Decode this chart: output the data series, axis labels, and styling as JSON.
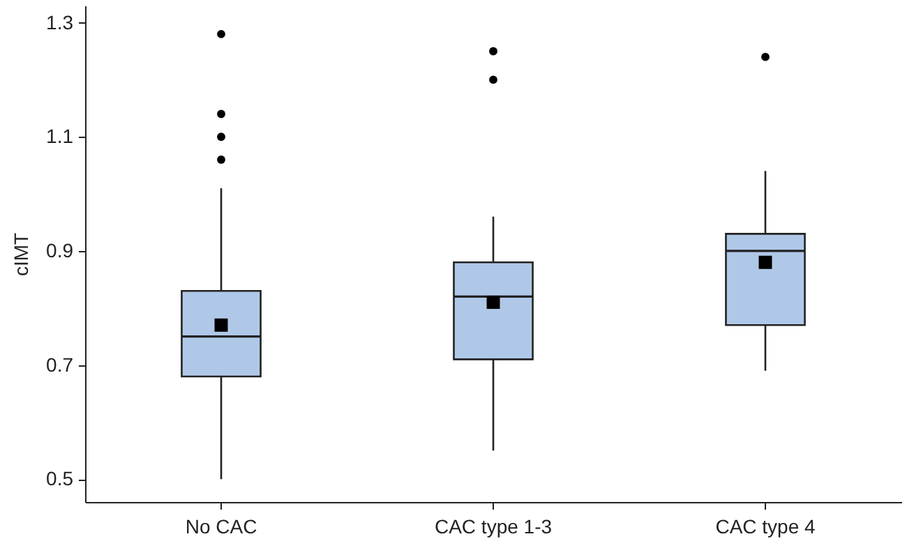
{
  "chart_data": {
    "type": "box",
    "ylabel": "cIMT",
    "categories": [
      "No CAC",
      "CAC type 1-3",
      "CAC type 4"
    ],
    "color": "#b0c8e8",
    "boxes": [
      {
        "low": 0.5,
        "q1": 0.68,
        "median": 0.75,
        "q3": 0.83,
        "high": 1.01,
        "mean": 0.77,
        "outliers": [
          1.06,
          1.1,
          1.14,
          1.28
        ]
      },
      {
        "low": 0.55,
        "q1": 0.71,
        "median": 0.82,
        "q3": 0.88,
        "high": 0.96,
        "mean": 0.81,
        "outliers": [
          1.2,
          1.25
        ]
      },
      {
        "low": 0.69,
        "q1": 0.77,
        "median": 0.9,
        "q3": 0.93,
        "high": 1.04,
        "mean": 0.88,
        "outliers": [
          1.24
        ]
      }
    ],
    "ylim": [
      0.46,
      1.33
    ],
    "yticks": [
      0.5,
      0.7,
      0.9,
      1.1,
      1.3
    ],
    "grid": false
  }
}
